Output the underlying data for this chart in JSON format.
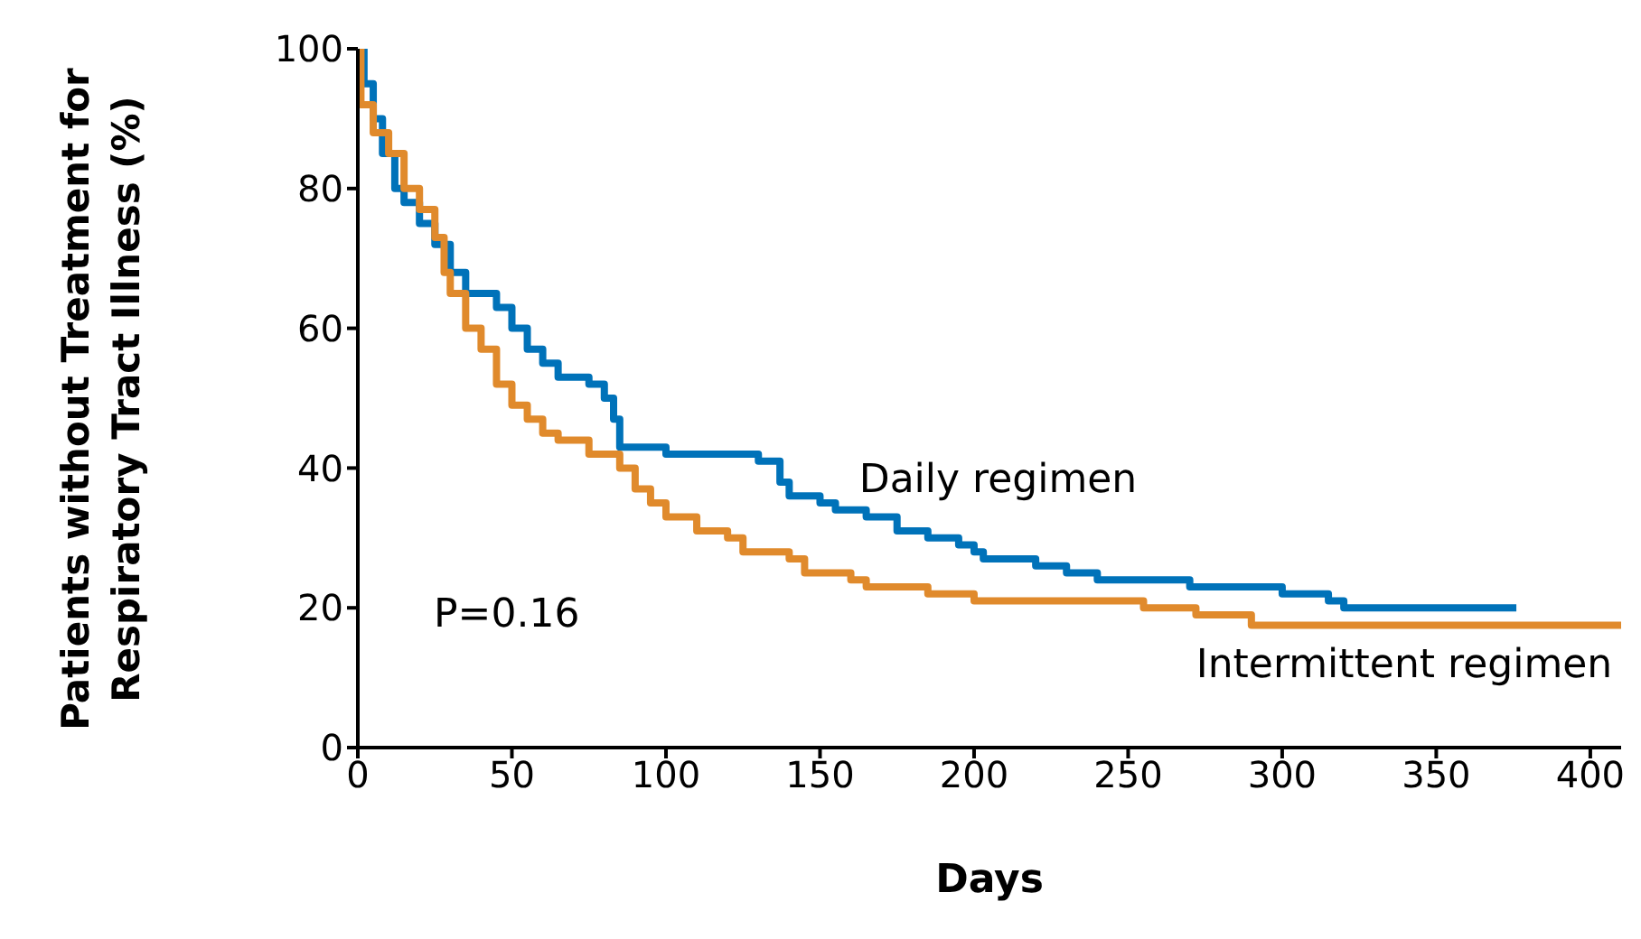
{
  "chart_data": {
    "type": "step",
    "xlabel": "Days",
    "ylabel": "Patients without Treatment for Respiratory Tract Illness (%)",
    "xlim": [
      0,
      410
    ],
    "xticks": [
      0,
      50,
      100,
      150,
      200,
      250,
      300,
      350,
      400
    ],
    "ylim": [
      0,
      100
    ],
    "yticks": [
      0,
      20,
      40,
      60,
      80,
      100
    ],
    "marker": "none",
    "line_style": "solid",
    "annotations": [
      "P=0.16"
    ],
    "series": [
      {
        "name": "Daily regimen",
        "color": "#0072b9",
        "x": [
          0,
          2,
          5,
          8,
          12,
          15,
          20,
          25,
          30,
          35,
          45,
          50,
          55,
          60,
          65,
          75,
          80,
          83,
          85,
          100,
          130,
          137,
          140,
          150,
          155,
          165,
          175,
          185,
          195,
          200,
          203,
          220,
          230,
          240,
          270,
          300,
          315,
          320,
          376
        ],
        "values": [
          100,
          95,
          90,
          85,
          80,
          78,
          75,
          72,
          68,
          65,
          63,
          60,
          57,
          55,
          53,
          52,
          50,
          47,
          43,
          42,
          41,
          38,
          36,
          35,
          34,
          33,
          31,
          30,
          29,
          28,
          27,
          26,
          25,
          24,
          23,
          22,
          21,
          20,
          20
        ]
      },
      {
        "name": "Intermittent regimen",
        "color": "#e08a2c",
        "x": [
          0,
          1,
          5,
          10,
          15,
          20,
          25,
          28,
          30,
          35,
          40,
          45,
          50,
          55,
          60,
          65,
          75,
          85,
          90,
          95,
          100,
          110,
          120,
          125,
          140,
          145,
          160,
          165,
          185,
          200,
          255,
          272,
          290,
          410
        ],
        "values": [
          100,
          92,
          88,
          85,
          80,
          77,
          73,
          68,
          65,
          60,
          57,
          52,
          49,
          47,
          45,
          44,
          42,
          40,
          37,
          35,
          33,
          31,
          30,
          28,
          27,
          25,
          24,
          23,
          22,
          21,
          20,
          19,
          17.5,
          17.5
        ]
      }
    ]
  }
}
